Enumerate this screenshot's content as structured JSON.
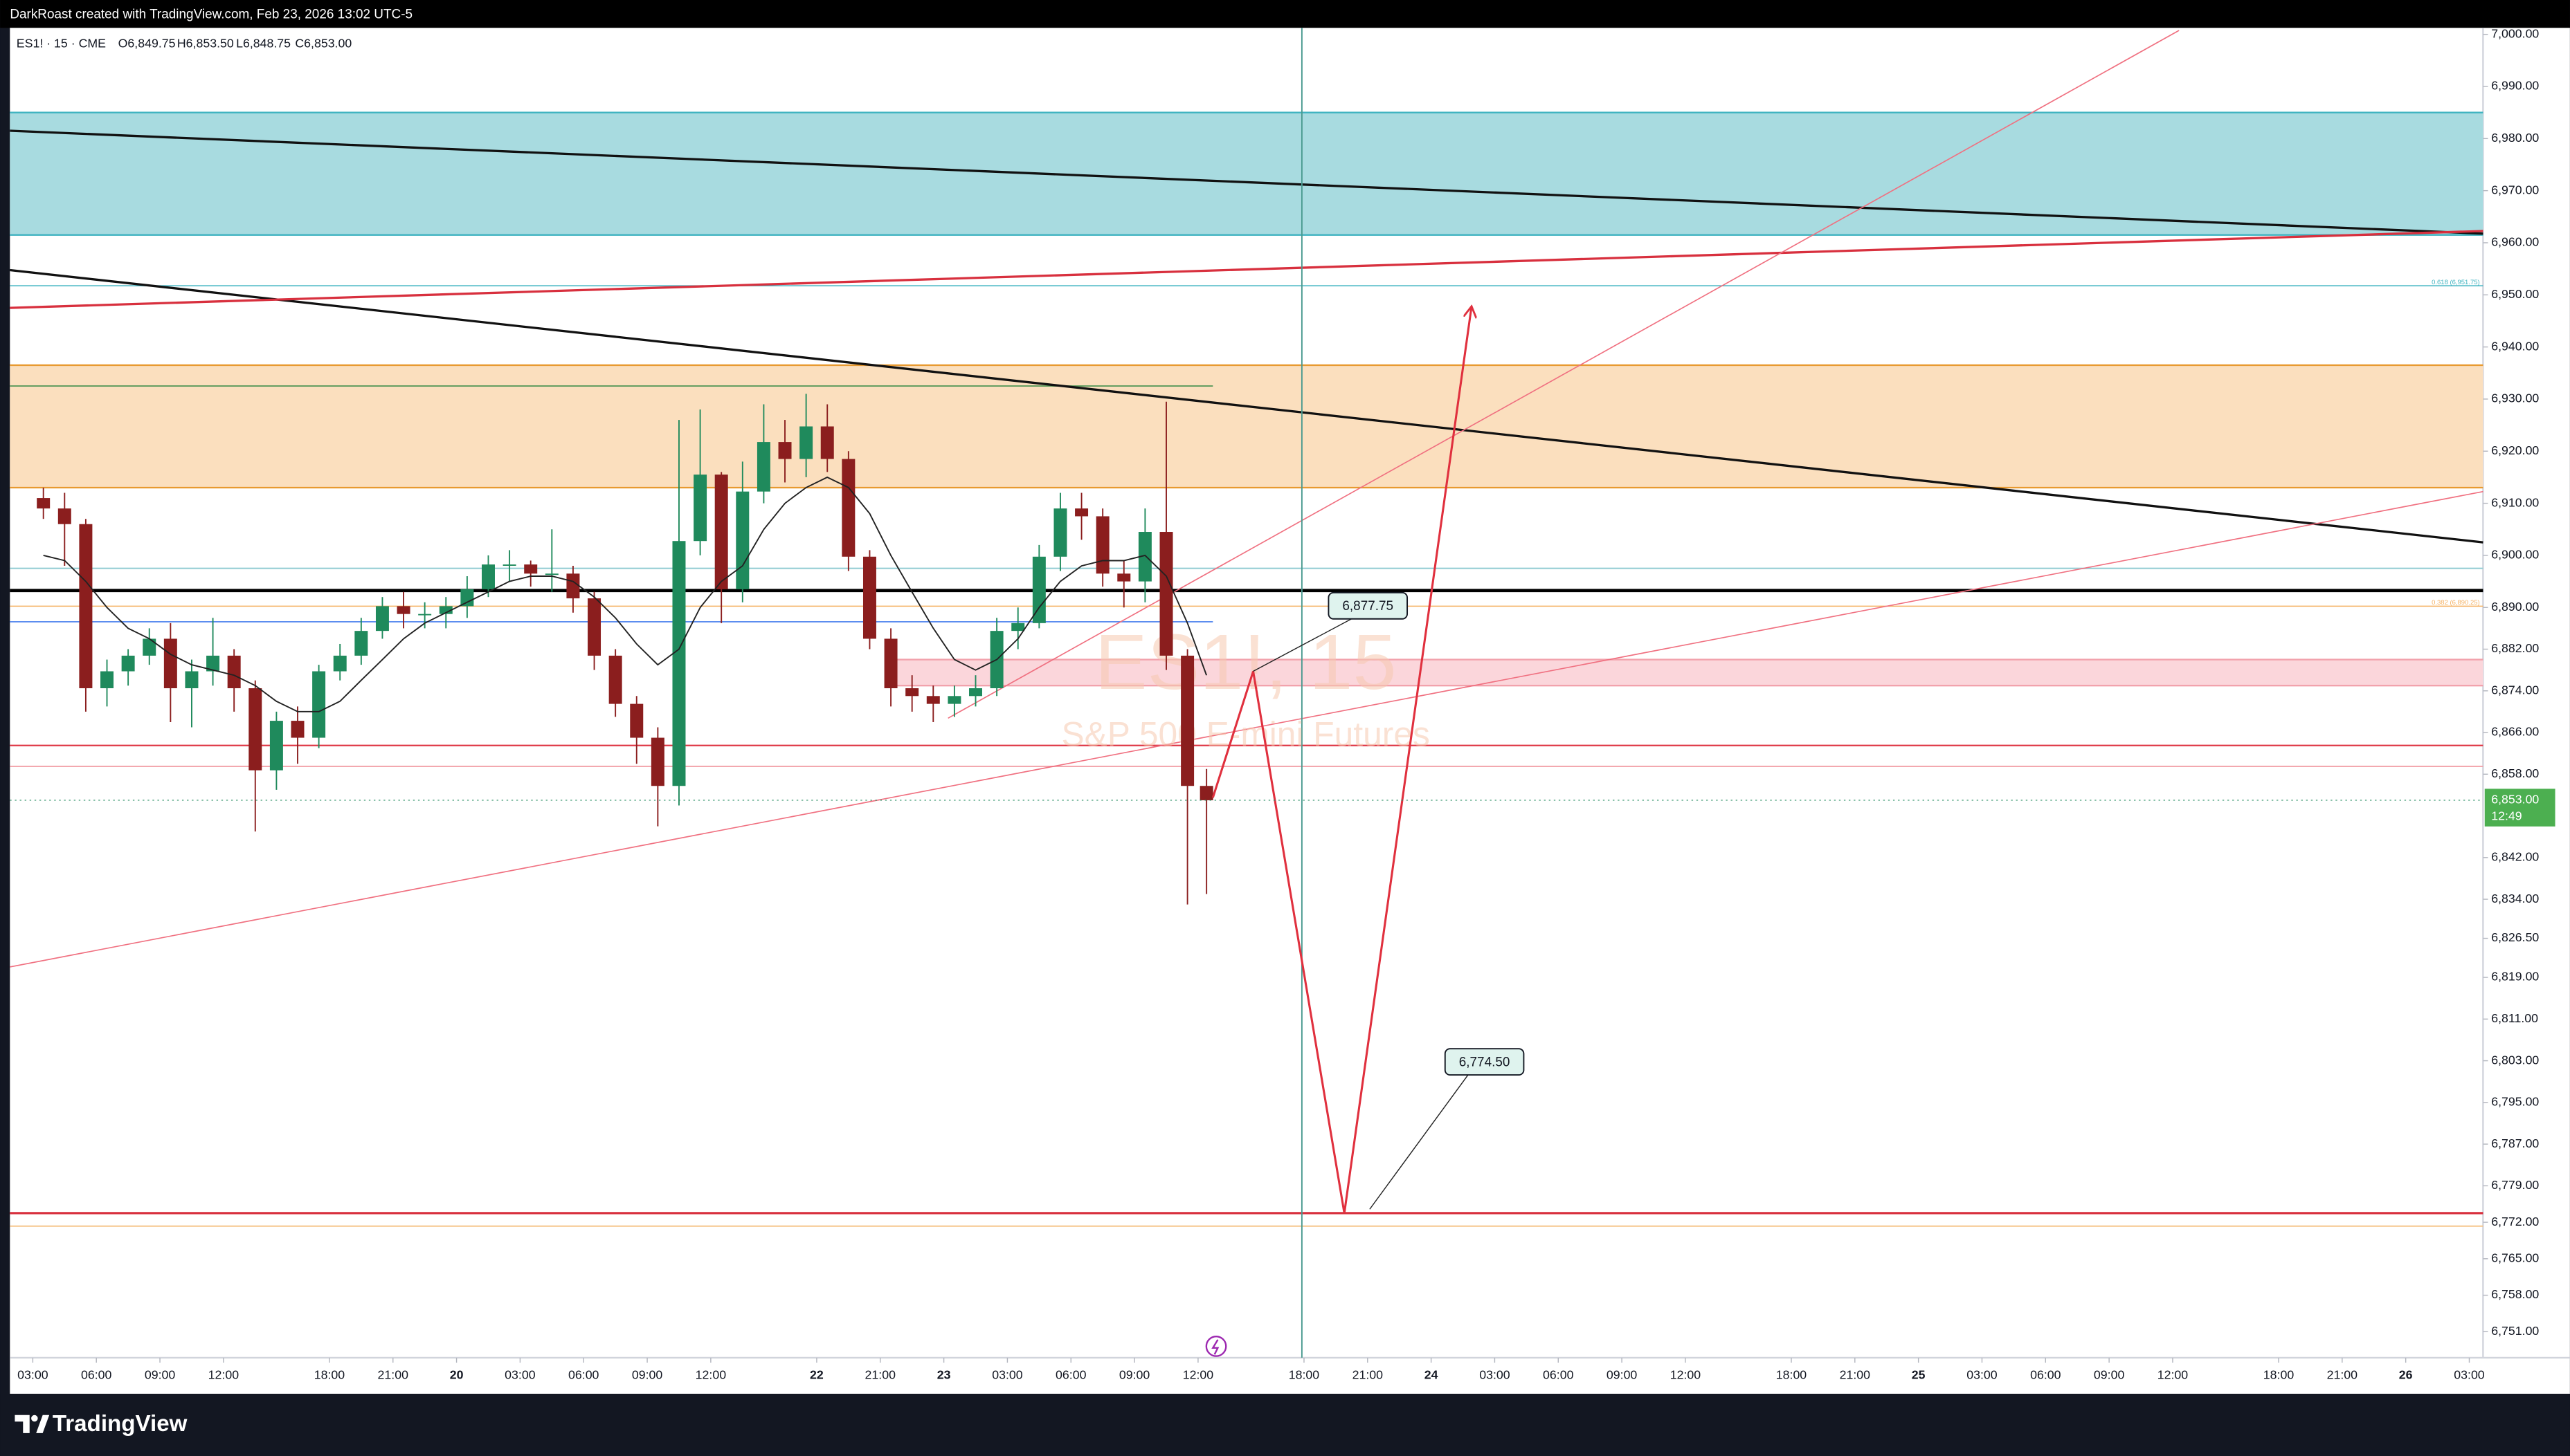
{
  "header": {
    "attribution": "DarkRoast created with TradingView.com, Feb 23, 2026 13:02 UTC-5"
  },
  "footer": {
    "brand": "TradingView"
  },
  "chart_data": {
    "type": "candlestick",
    "title": "ES1! · 15 · CME",
    "ohlc": [
      "O6,849.75",
      "H6,853.50",
      "L6,848.75",
      "C6,853.00"
    ],
    "watermark": [
      "ES1!, 15",
      "S&P 500 E-mini Futures"
    ],
    "xlim": [
      -1.08,
      115.65
    ],
    "ylim": [
      6746,
      7001.25
    ],
    "grid": false,
    "up_color": "#1f8a5c",
    "down_color": "#8b1e1e",
    "xticks": [
      {
        "value": 0,
        "label": "03:00"
      },
      {
        "value": 3,
        "label": "06:00"
      },
      {
        "value": 6,
        "label": "09:00"
      },
      {
        "value": 9,
        "label": "12:00"
      },
      {
        "value": 14,
        "label": "18:00"
      },
      {
        "value": 17,
        "label": "21:00"
      },
      20,
      {
        "value": 23,
        "label": "03:00"
      },
      {
        "value": 26,
        "label": "06:00"
      },
      {
        "value": 29,
        "label": "09:00"
      },
      {
        "value": 32,
        "label": "12:00"
      },
      {
        "value": 37,
        "label": "22"
      },
      {
        "value": 40,
        "label": "21:00"
      },
      {
        "value": 43,
        "label": "23"
      },
      {
        "value": 46,
        "label": "03:00"
      },
      {
        "value": 49,
        "label": "06:00"
      },
      {
        "value": 52,
        "label": "09:00"
      },
      {
        "value": 55,
        "label": "12:00"
      },
      {
        "value": 60,
        "label": "18:00"
      },
      {
        "value": 63,
        "label": "21:00"
      },
      {
        "value": 66,
        "label": "24"
      },
      {
        "value": 69,
        "label": "03:00"
      },
      {
        "value": 72,
        "label": "06:00"
      },
      {
        "value": 75,
        "label": "09:00"
      },
      {
        "value": 78,
        "label": "12:00"
      },
      {
        "value": 83,
        "label": "18:00"
      },
      {
        "value": 86,
        "label": "21:00"
      },
      {
        "value": 89,
        "label": "25"
      },
      {
        "value": 92,
        "label": "03:00"
      },
      {
        "value": 95,
        "label": "06:00"
      },
      {
        "value": 98,
        "label": "09:00"
      },
      {
        "value": 101,
        "label": "12:00"
      },
      {
        "value": 106,
        "label": "18:00"
      },
      {
        "value": 109,
        "label": "21:00"
      },
      {
        "value": 112,
        "label": "26"
      },
      {
        "value": 115,
        "label": "03:00"
      }
    ],
    "yticks": [
      {
        "value": 7000,
        "label": "7,000.00"
      },
      {
        "value": 6990,
        "label": "6,990.00"
      },
      {
        "value": 6980,
        "label": "6,980.00"
      },
      {
        "value": 6970,
        "label": "6,970.00"
      },
      {
        "value": 6960,
        "label": "6,960.00"
      },
      {
        "value": 6950,
        "label": "6,950.00"
      },
      {
        "value": 6940,
        "label": "6,940.00"
      },
      {
        "value": 6930,
        "label": "6,930.00"
      },
      {
        "value": 6920,
        "label": "6,920.00"
      },
      {
        "value": 6910,
        "label": "6,910.00"
      },
      {
        "value": 6900,
        "label": "6,900.00"
      },
      {
        "value": 6890,
        "label": "6,890.00"
      },
      {
        "value": 6882,
        "label": "6,882.00"
      },
      {
        "value": 6874,
        "label": "6,874.00"
      },
      {
        "value": 6866,
        "label": "6,866.00"
      },
      {
        "value": 6858,
        "label": "6,858.00"
      },
      {
        "value": 6842,
        "label": "6,842.00"
      },
      {
        "value": 6834,
        "label": "6,834.00"
      },
      {
        "value": 6826.5,
        "label": "6,826.50"
      },
      {
        "value": 6819,
        "label": "6,819.00"
      },
      {
        "value": 6811,
        "label": "6,811.00"
      },
      {
        "value": 6803,
        "label": "6,803.00"
      },
      {
        "value": 6795,
        "label": "6,795.00"
      },
      {
        "value": 6787,
        "label": "6,787.00"
      },
      {
        "value": 6779,
        "label": "6,779.00"
      },
      {
        "value": 6772,
        "label": "6,772.00"
      },
      {
        "value": 6765,
        "label": "6,765.00"
      },
      {
        "value": 6758,
        "label": "6,758.00"
      },
      {
        "value": 6751,
        "label": "6,751.00"
      }
    ],
    "x": [
      0.5,
      1.5,
      2.5,
      3.5,
      4.5,
      5.5,
      6.5,
      7.5,
      8.5,
      9.5,
      10.5,
      11.5,
      12.5,
      13.5,
      14.5,
      15.5,
      16.5,
      17.5,
      18.5,
      19.5,
      20.5,
      21.5,
      22.5,
      23.5,
      24.5,
      25.5,
      26.5,
      27.5,
      28.5,
      29.5,
      30.5,
      31.5,
      32.5,
      33.5,
      34.5,
      35.5,
      36.5,
      37.5,
      38.5,
      39.5,
      40.5,
      41.5,
      42.5,
      43.5,
      44.5,
      45.5,
      46.5,
      47.5,
      48.5,
      49.5,
      50.5,
      51.5,
      52.5,
      53.5,
      54.5,
      55.4
    ],
    "open": [
      6911,
      6909,
      6906,
      6874.5,
      6877.75,
      6880.75,
      6884,
      6874.5,
      6877.75,
      6880.75,
      6874.5,
      6858.75,
      6868.25,
      6865,
      6877.75,
      6880.75,
      6885.5,
      6890.25,
      6888.75,
      6888.75,
      6890.25,
      6893.5,
      6898.25,
      6898.25,
      6896.5,
      6896.5,
      6891.75,
      6880.75,
      6871.5,
      6865,
      6855.75,
      6902.75,
      6915.5,
      6893.5,
      6912.25,
      6921.75,
      6918.5,
      6924.75,
      6918.5,
      6899.75,
      6884,
      6874.5,
      6873,
      6871.5,
      6873,
      6874.5,
      6885.5,
      6887,
      6899.75,
      6909,
      6907.5,
      6896.5,
      6895,
      6904.5,
      6880.75,
      6855.75
    ],
    "high": [
      6913,
      6912,
      6907,
      6880,
      6882,
      6886,
      6887,
      6880,
      6888,
      6882,
      6876,
      6870,
      6871,
      6879,
      6883,
      6888,
      6892,
      6893,
      6891,
      6892,
      6896,
      6900,
      6901,
      6899,
      6905,
      6898,
      6893,
      6882,
      6873,
      6867,
      6926,
      6928,
      6916,
      6918,
      6929,
      6926,
      6931,
      6929,
      6920,
      6901,
      6886,
      6877,
      6875,
      6875,
      6877,
      6888,
      6890,
      6902,
      6912,
      6912,
      6909,
      6899,
      6909,
      6929.5,
      6882,
      6859
    ],
    "low": [
      6907,
      6898,
      6870,
      6871,
      6875,
      6879,
      6868,
      6867,
      6875,
      6870,
      6847,
      6855,
      6860,
      6863,
      6876,
      6879,
      6884,
      6886,
      6886,
      6886,
      6888,
      6892,
      6895,
      6894,
      6893,
      6889,
      6878,
      6869,
      6860,
      6848,
      6852,
      6900,
      6887,
      6891,
      6910,
      6914,
      6915,
      6916,
      6897,
      6882,
      6871,
      6870,
      6868,
      6869,
      6871,
      6873,
      6882,
      6886,
      6897,
      6903,
      6894,
      6890,
      6891,
      6878,
      6833,
      6835
    ],
    "close": [
      6909,
      6906,
      6874.5,
      6877.75,
      6880.75,
      6884,
      6874.5,
      6877.75,
      6880.75,
      6874.5,
      6858.75,
      6868.25,
      6865,
      6877.75,
      6880.75,
      6885.5,
      6890.25,
      6888.75,
      6888.75,
      6890.25,
      6893.5,
      6898.25,
      6898.25,
      6896.5,
      6896.5,
      6891.75,
      6880.75,
      6871.5,
      6865,
      6855.75,
      6902.75,
      6915.5,
      6893.5,
      6912.25,
      6921.75,
      6918.5,
      6924.75,
      6918.5,
      6899.75,
      6884,
      6874.5,
      6873,
      6871.5,
      6873,
      6874.5,
      6885.5,
      6887,
      6899.75,
      6909,
      6907.5,
      6896.5,
      6895,
      6904.5,
      6880.75,
      6855.75,
      6853
    ],
    "ma": [
      6900,
      6899,
      6895,
      6890,
      6886,
      6884,
      6881,
      6879,
      6878,
      6877,
      6875,
      6872,
      6870,
      6870,
      6872,
      6876,
      6880,
      6884,
      6887,
      6889,
      6891,
      6893,
      6895,
      6896,
      6896,
      6895,
      6892,
      6888,
      6883,
      6879,
      6882,
      6890,
      6895,
      6898,
      6905,
      6910,
      6913,
      6915,
      6913,
      6908,
      6900,
      6893,
      6886,
      6880,
      6878,
      6880,
      6884,
      6890,
      6895,
      6898,
      6899,
      6899,
      6900,
      6896,
      6887,
      6877
    ],
    "ma_color": "#222222",
    "zones": [
      {
        "low": 6961.5,
        "high": 6985,
        "start": -1.08,
        "color": "#a8dbe0",
        "border": "#3fb3c0"
      },
      {
        "low": 6913,
        "high": 6936.5,
        "start": -1.08,
        "color": "#fbdfbe",
        "border": "#e89a30"
      },
      {
        "low": 6875,
        "high": 6880,
        "start": 40.8,
        "color": "#fbd6db",
        "border": "#f2a2ac"
      }
    ],
    "levels": [
      {
        "price": 6893.25,
        "start": -1.08,
        "end": 115.65,
        "color": "#000000",
        "width": 2
      },
      {
        "price": 6897.5,
        "start": -1.08,
        "end": 115.65,
        "color": "#9ad0d6",
        "width": 1
      },
      {
        "price": 6863.5,
        "start": -1.08,
        "end": 115.65,
        "color": "#e0404e",
        "width": 1
      },
      {
        "price": 6859.5,
        "start": -1.08,
        "end": 115.65,
        "color": "#f2a0a8",
        "width": 0.8
      },
      {
        "price": 6773.75,
        "start": -1.08,
        "end": 115.65,
        "color": "#d8303e",
        "width": 1.4
      },
      {
        "price": 6771.25,
        "start": -1.08,
        "end": 115.65,
        "color": "#f5c080",
        "width": 0.8
      },
      {
        "price": 6887.25,
        "start": -1.08,
        "end": 55.7,
        "color": "#5b8def",
        "width": 0.8
      },
      {
        "price": 6932.5,
        "start": -1.08,
        "end": 55.7,
        "color": "#5a9a5a",
        "width": 0.8
      },
      {
        "price": 6951.75,
        "start": -1.08,
        "end": 115.65,
        "color": "#3fb3c0",
        "width": 0.6,
        "label": "0.618 (6,951.75)"
      },
      {
        "price": 6890.25,
        "start": -1.08,
        "end": 115.65,
        "color": "#f5b060",
        "width": 0.6,
        "label": "0.382 (6,890.25)"
      }
    ],
    "segments": [
      {
        "x": [
          -1.08,
          115.65
        ],
        "y": [
          6981.5,
          6961.75
        ],
        "color": "#111111",
        "width": 1.4
      },
      {
        "x": [
          -1.08,
          115.65
        ],
        "y": [
          6954.75,
          6902.5
        ],
        "color": "#111111",
        "width": 1.4
      },
      {
        "x": [
          -1.08,
          115.65
        ],
        "y": [
          6947.5,
          6962.25
        ],
        "color": "#d8303e",
        "width": 1.4
      },
      {
        "x": [
          -1.08,
          115.65
        ],
        "y": [
          6821,
          6912.25
        ],
        "color": "#f07080",
        "width": 0.7
      },
      {
        "x": [
          43.2,
          101.3
        ],
        "y": [
          6868.75,
          7000.75
        ],
        "color": "#f07080",
        "width": 0.7
      }
    ],
    "vline": {
      "x": 59.9,
      "color": "#4a9a90"
    },
    "arrow": {
      "x": [
        55.7,
        57.6,
        61.9,
        67.9
      ],
      "y": [
        6853.5,
        6877.75,
        6773.75,
        6947.5
      ],
      "color": "#e0303e"
    },
    "callouts": [
      {
        "x": 57.6,
        "price": 6877.75,
        "label": "6,877.75"
      },
      {
        "x": 63.1,
        "price": 6774.5,
        "label": "6,774.50"
      }
    ],
    "last_price": {
      "value": 6853,
      "label": "6,853.00"
    },
    "countdown": "12:49"
  }
}
